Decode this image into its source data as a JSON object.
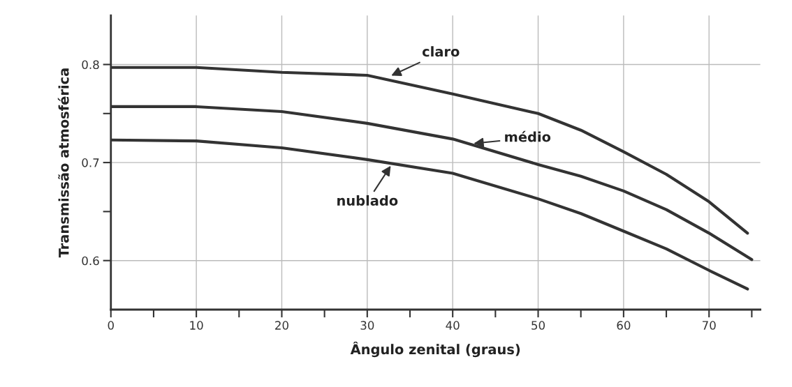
{
  "chart_data": {
    "type": "line",
    "xlabel": "Ângulo zenital (graus)",
    "ylabel": "Transmissão atmosférica",
    "xlim": [
      0,
      76
    ],
    "ylim": [
      0.55,
      0.85
    ],
    "xticks": [
      0,
      {
        "value": 5,
        "label": null
      },
      10,
      {
        "value": 15,
        "label": null
      },
      20,
      {
        "value": 25,
        "label": null
      },
      30,
      {
        "value": 35,
        "label": null
      },
      40,
      {
        "value": 45,
        "label": null
      },
      50,
      {
        "value": 55,
        "label": null
      },
      60,
      {
        "value": 65,
        "label": null
      },
      70,
      {
        "value": 75,
        "label": null
      }
    ],
    "yticks": [
      0.6,
      {
        "value": 0.65,
        "label": null
      },
      0.7,
      {
        "value": 0.75,
        "label": null
      },
      0.8
    ],
    "grid": true,
    "line_style": "solid",
    "marker": "none",
    "series": [
      {
        "color": "#333333",
        "x": [
          0,
          10,
          20,
          30,
          40,
          50,
          55,
          60,
          65,
          70,
          74.5
        ],
        "values": [
          0.797,
          0.797,
          0.792,
          0.789,
          0.77,
          0.75,
          0.733,
          0.711,
          0.688,
          0.66,
          0.628
        ]
      },
      {
        "color": "#333333",
        "x": [
          0,
          10,
          20,
          30,
          40,
          50,
          55,
          60,
          65,
          70,
          75
        ],
        "values": [
          0.757,
          0.757,
          0.752,
          0.74,
          0.724,
          0.698,
          0.686,
          0.671,
          0.652,
          0.628,
          0.601
        ]
      },
      {
        "color": "#333333",
        "x": [
          0,
          10,
          20,
          30,
          40,
          50,
          55,
          60,
          65,
          70,
          74.5
        ],
        "values": [
          0.723,
          0.722,
          0.715,
          0.703,
          0.689,
          0.663,
          0.648,
          0.63,
          0.612,
          0.59,
          0.571
        ]
      }
    ],
    "annotations": [
      {
        "text": "claro",
        "x": 32.4,
        "y": 0.787
      },
      {
        "text": "médio",
        "x": 42,
        "y": 0.719
      },
      {
        "text": "nublado",
        "x": 33,
        "y": 0.7
      }
    ]
  }
}
